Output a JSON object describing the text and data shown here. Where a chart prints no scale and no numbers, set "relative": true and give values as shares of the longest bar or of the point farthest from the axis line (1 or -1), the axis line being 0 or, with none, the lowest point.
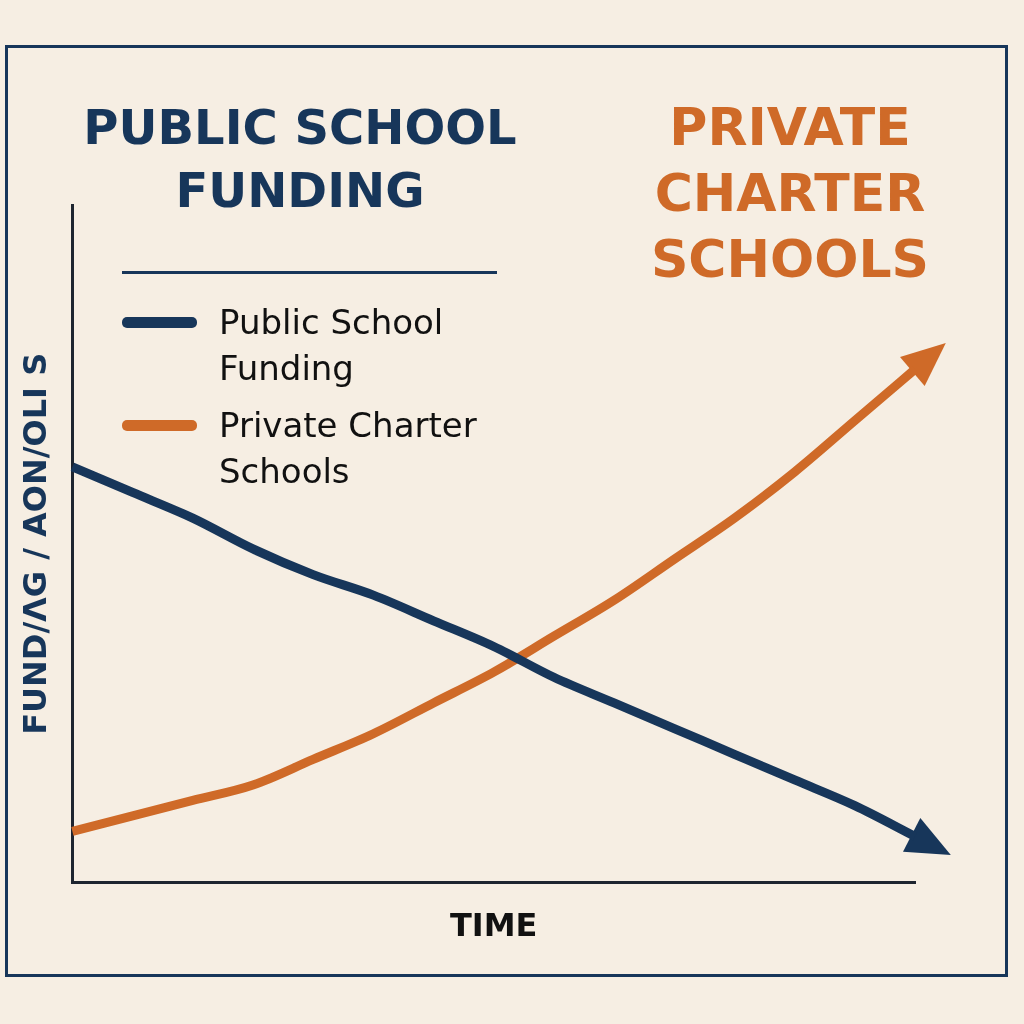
{
  "chart_data": {
    "type": "line",
    "title": "PUBLIC SCHOOL FUNDING",
    "subtitle": "PRIVATE CHARTER SCHOOLS",
    "xlabel": "TIME",
    "ylabel": "FUND/ΛG / AON/OLI S",
    "relative": true,
    "legend": "top left",
    "categories": [
      null,
      null,
      null,
      null,
      null,
      null,
      null,
      null,
      null,
      null,
      null,
      null,
      null,
      null,
      null
    ],
    "series": [
      {
        "name": "Public School Funding",
        "color": "#17365a",
        "values": [
          0.81,
          0.76,
          0.71,
          0.65,
          0.6,
          0.56,
          0.51,
          0.46,
          0.4,
          0.35,
          0.3,
          0.25,
          0.2,
          0.15,
          0.09
        ]
      },
      {
        "name": "Private Charter Schools",
        "color": "#cf6a28",
        "values": [
          0.1,
          0.13,
          0.16,
          0.19,
          0.24,
          0.29,
          0.35,
          0.41,
          0.48,
          0.55,
          0.63,
          0.71,
          0.8,
          0.9,
          1.0
        ]
      }
    ]
  }
}
